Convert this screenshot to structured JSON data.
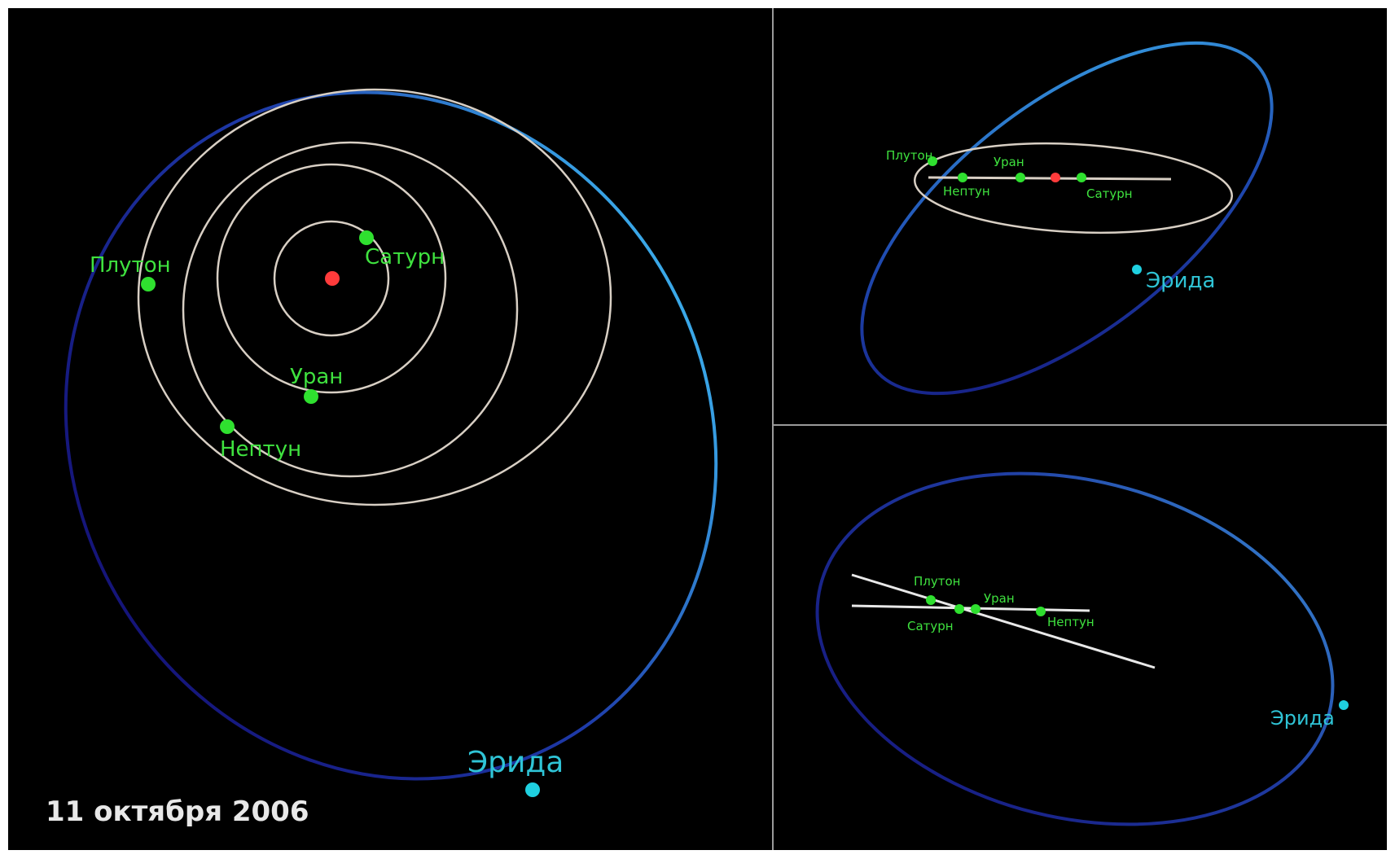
{
  "date_label": "11 октября 2006",
  "colors": {
    "background": "#000000",
    "divider": "#9a9a9a",
    "planet_orbit": "#d8cfc4",
    "planet": "#2fe02f",
    "planet_label": "#3fe23f",
    "sun": "#ff3b3b",
    "eris_orbit_near": "#3aa0e0",
    "eris_orbit_far": "#1a1a8c",
    "eris": "#1fd0e0",
    "eris_label": "#2fc4d6"
  },
  "views": {
    "top": {
      "planets": [
        {
          "name": "Сатурн"
        },
        {
          "name": "Уран"
        },
        {
          "name": "Нептун"
        },
        {
          "name": "Плутон"
        }
      ],
      "eris_label": "Эрида"
    },
    "side": {
      "planets": [
        {
          "name": "Плутон"
        },
        {
          "name": "Уран"
        },
        {
          "name": "Нептун"
        },
        {
          "name": "Сатурн"
        }
      ],
      "eris_label": "Эрида"
    },
    "edge": {
      "planets": [
        {
          "name": "Плутон"
        },
        {
          "name": "Уран"
        },
        {
          "name": "Сатурн"
        },
        {
          "name": "Нептун"
        }
      ],
      "eris_label": "Эрида"
    }
  }
}
